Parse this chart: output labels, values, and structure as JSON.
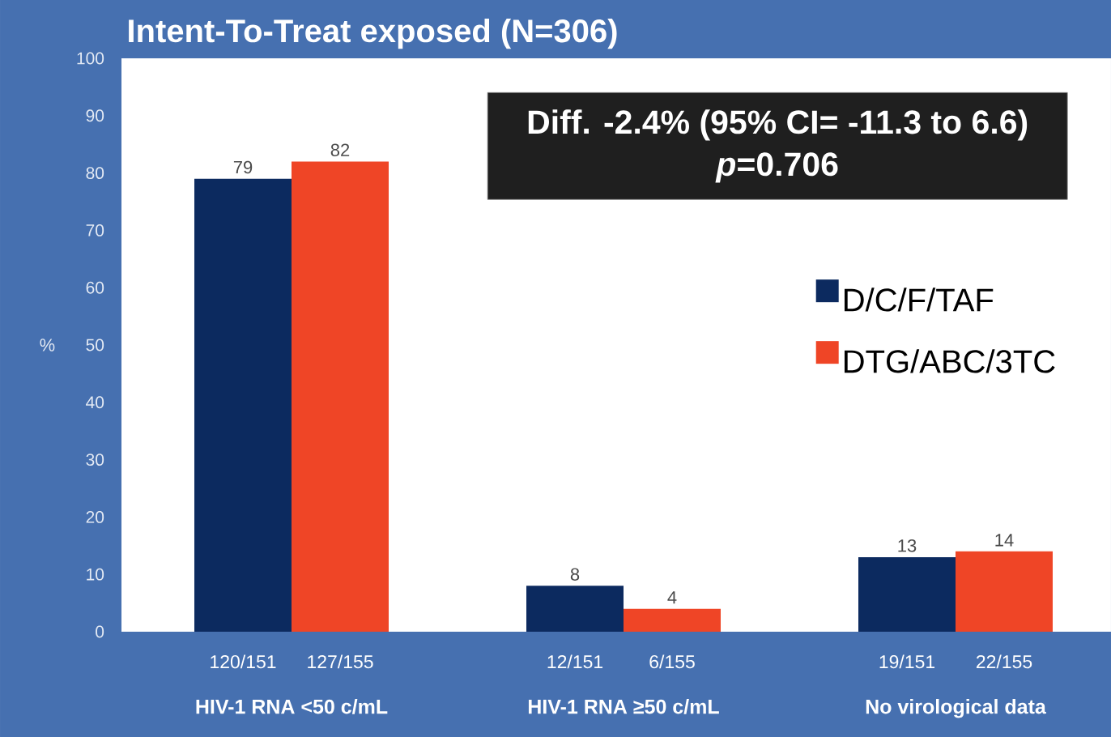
{
  "chart_data": {
    "type": "bar",
    "title": "Intent-To-Treat exposed (N=306)",
    "ylabel": "%",
    "categories": [
      "HIV-1 RNA <50 c/mL",
      "HIV-1 RNA ≥50 c/mL",
      "No virological data"
    ],
    "series": [
      {
        "name": "D/C/F/TAF",
        "color": "#0c2a5f",
        "values": [
          79,
          8,
          13
        ]
      },
      {
        "name": "DTG/ABC/3TC",
        "color": "#ef4526",
        "values": [
          82,
          4,
          14
        ]
      }
    ],
    "ylim": [
      0,
      100
    ],
    "yticks": [
      0,
      10,
      20,
      30,
      40,
      50,
      60,
      70,
      80,
      90,
      100
    ],
    "data_labels": true,
    "legend": "right",
    "annotations": [
      "Diff. -2.4% (95% CI= -11.3 to 6.6)",
      "*p*=0.706",
      "120/151",
      "127/155",
      "12/151",
      "6/155",
      "19/151",
      "22/155"
    ]
  }
}
